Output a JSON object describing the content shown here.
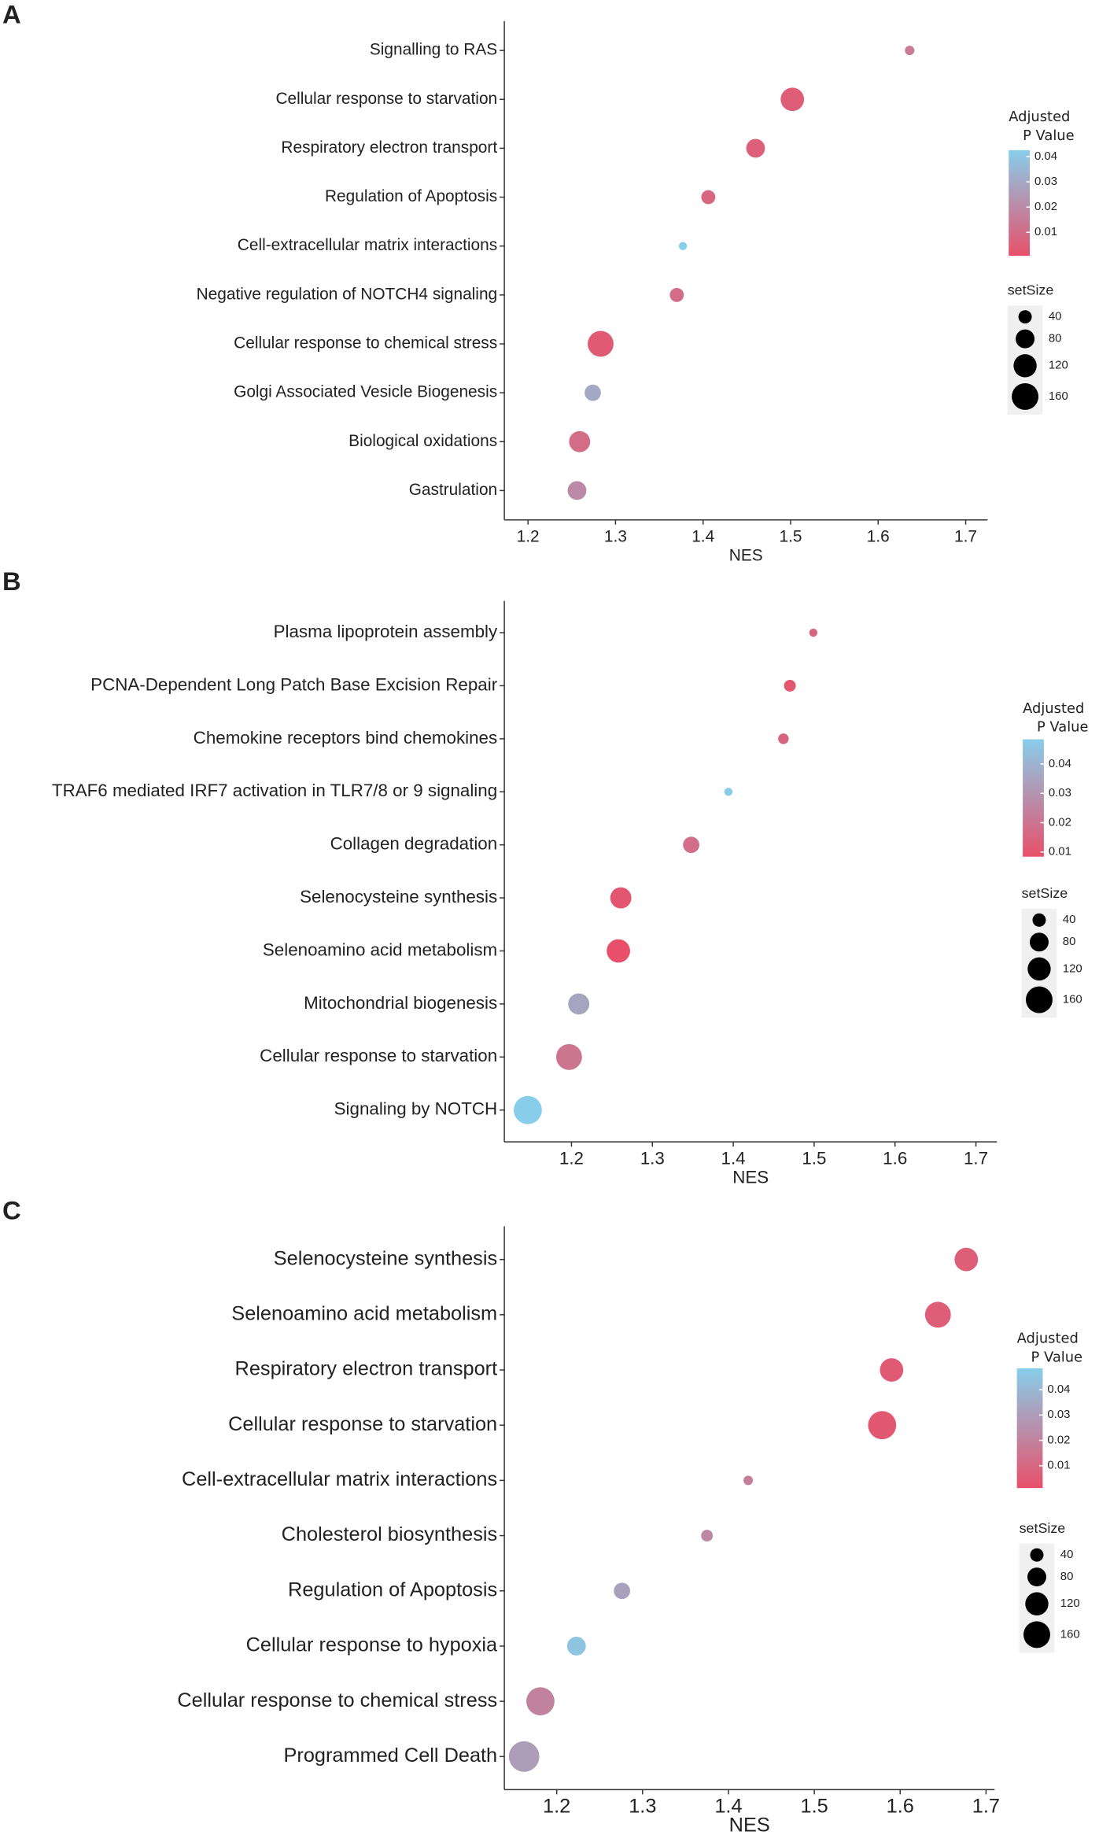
{
  "chart_data": [
    {
      "type": "dot",
      "panel_label": "A",
      "x_label": "NES",
      "categories": [
        "Signalling to RAS",
        "Cellular response to starvation",
        "Respiratory electron transport",
        "Regulation of Apoptosis",
        "Cell-extracellular matrix interactions",
        "Negative regulation of NOTCH4 signaling",
        "Cellular response to chemical stress",
        "Golgi Associated Vesicle Biogenesis",
        "Biological oxidations",
        "Gastrulation"
      ],
      "values": [
        1.636,
        1.502,
        1.46,
        1.406,
        1.377,
        1.37,
        1.283,
        1.274,
        1.259,
        1.256
      ],
      "p_values": [
        0.015,
        0.005,
        0.006,
        0.008,
        0.045,
        0.01,
        0.004,
        0.03,
        0.01,
        0.02
      ],
      "set_sizes": [
        20,
        123,
        79,
        44,
        15,
        44,
        150,
        60,
        100,
        79
      ],
      "xlim": [
        1.173,
        1.725
      ],
      "xticks": [
        1.2,
        1.3,
        1.4,
        1.5,
        1.6,
        1.7
      ],
      "color_legend_title": [
        "Adjusted",
        "P Value"
      ],
      "color_lim": [
        0.0007,
        0.0425
      ],
      "color_ticks": [
        0.01,
        0.02,
        0.03,
        0.04
      ],
      "color_low": "#e8506a",
      "color_high": "#87ceeb",
      "size_legend_title": "setSize",
      "size_legend_values": [
        40,
        80,
        120,
        160
      ]
    },
    {
      "type": "dot",
      "panel_label": "B",
      "x_label": "NES",
      "categories": [
        "Plasma lipoprotein assembly",
        "PCNA-Dependent Long Patch Base Excision Repair",
        "Chemokine receptors bind chemokines",
        "TRAF6 mediated IRF7 activation in TLR7/8 or 9 signaling",
        "Collagen degradation",
        "Selenocysteine synthesis",
        "Selenoamino acid metabolism",
        "Mitochondrial biogenesis",
        "Cellular response to starvation",
        "Signaling by NOTCH"
      ],
      "values": [
        1.499,
        1.47,
        1.462,
        1.394,
        1.348,
        1.261,
        1.258,
        1.209,
        1.197,
        1.146
      ],
      "p_values": [
        0.015,
        0.01,
        0.015,
        0.048,
        0.018,
        0.01,
        0.005,
        0.035,
        0.02,
        0.048
      ],
      "set_sizes": [
        15,
        31,
        25,
        15,
        60,
        100,
        123,
        100,
        150,
        178
      ],
      "xlim": [
        1.117,
        1.726
      ],
      "xticks": [
        1.2,
        1.3,
        1.4,
        1.5,
        1.6,
        1.7
      ],
      "color_legend_title": [
        "Adjusted",
        "P Value"
      ],
      "color_lim": [
        0.0084,
        0.0484
      ],
      "color_ticks": [
        0.01,
        0.02,
        0.03,
        0.04
      ],
      "color_low": "#e8506a",
      "color_high": "#87ceeb",
      "size_legend_title": "setSize",
      "size_legend_values": [
        40,
        80,
        120,
        160
      ]
    },
    {
      "type": "dot",
      "panel_label": "C",
      "x_label": "NES",
      "categories": [
        "Selenocysteine synthesis",
        "Selenoamino acid metabolism",
        "Respiratory electron transport",
        "Cellular response to starvation",
        "Cell-extracellular matrix interactions",
        "Cholesterol biosynthesis",
        "Regulation of Apoptosis",
        "Cellular response to hypoxia",
        "Cellular response to chemical stress",
        "Programmed Cell Death"
      ],
      "values": [
        1.677,
        1.644,
        1.59,
        1.579,
        1.423,
        1.375,
        1.276,
        1.223,
        1.181,
        1.162
      ],
      "p_values": [
        0.006,
        0.006,
        0.005,
        0.004,
        0.018,
        0.022,
        0.032,
        0.045,
        0.02,
        0.03
      ],
      "set_sizes": [
        123,
        150,
        123,
        178,
        20,
        31,
        60,
        79,
        178,
        209
      ],
      "xlim": [
        1.139,
        1.71
      ],
      "xticks": [
        1.2,
        1.3,
        1.4,
        1.5,
        1.6,
        1.7
      ],
      "color_legend_title": [
        "Adjusted",
        "P Value"
      ],
      "color_lim": [
        0.0012,
        0.0484
      ],
      "color_ticks": [
        0.01,
        0.02,
        0.03,
        0.04
      ],
      "color_low": "#e8506a",
      "color_high": "#87ceeb",
      "size_legend_title": "setSize",
      "size_legend_values": [
        40,
        80,
        120,
        160
      ]
    }
  ]
}
